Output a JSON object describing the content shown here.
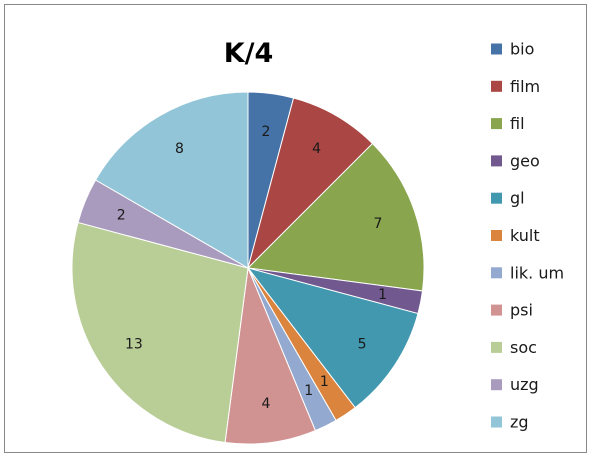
{
  "chart_data": {
    "type": "pie",
    "title": "K/4",
    "legend_position": "right",
    "categories": [
      "bio",
      "film",
      "fil",
      "geo",
      "gl",
      "kult",
      "lik. um",
      "psi",
      "soc",
      "uzg",
      "zg"
    ],
    "values": [
      2,
      4,
      7,
      1,
      5,
      1,
      1,
      4,
      13,
      2,
      8
    ],
    "colors": [
      "#4572A7",
      "#AA4643",
      "#89A54E",
      "#71588F",
      "#4198AF",
      "#DB843D",
      "#93A9CF",
      "#D19392",
      "#B9CD96",
      "#A99BBD",
      "#92C5D8"
    ],
    "start_angle_deg": 0,
    "direction": "clockwise"
  }
}
